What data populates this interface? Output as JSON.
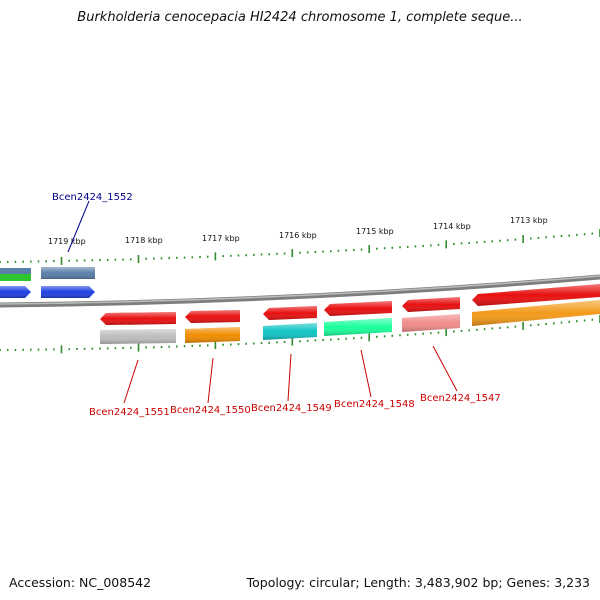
{
  "title": "Burkholderia cenocepacia HI2424 chromosome 1, complete seque...",
  "footer": {
    "accession": "Accession: NC_008542",
    "info": "Topology: circular; Length: 3,483,902 bp; Genes: 3,233"
  },
  "colors": {
    "tick": "#2e8b2e",
    "backbone": "#888888",
    "label_top": "#00008b",
    "label_bottom": "#cc0000"
  },
  "ticks": [
    "1719 kbp",
    "1718 kbp",
    "1717 kbp",
    "1716 kbp",
    "1715 kbp",
    "1714 kbp",
    "1713 kbp"
  ],
  "gene_labels": {
    "top": [
      "Bcen2424_1552"
    ],
    "bottom": [
      "Bcen2424_1551",
      "Bcen2424_1550",
      "Bcen2424_1549",
      "Bcen2424_1548",
      "Bcen2424_1547"
    ]
  },
  "features": [
    {
      "name": "Bcen2424_1552",
      "colors": [
        "#5a7fa8",
        "#1f3fe0"
      ]
    },
    {
      "name": "Bcen2424_1551",
      "colors": [
        "#e81010",
        "#bdbdbd"
      ]
    },
    {
      "name": "Bcen2424_1550",
      "colors": [
        "#e81010",
        "#f08c00"
      ]
    },
    {
      "name": "Bcen2424_1549",
      "colors": [
        "#e81010",
        "#10c4c4"
      ]
    },
    {
      "name": "Bcen2424_1548",
      "colors": [
        "#e81010",
        "#1aff9c"
      ]
    },
    {
      "name": "Bcen2424_1547",
      "colors": [
        "#e81010",
        "#f08b8b"
      ]
    },
    {
      "name": "",
      "colors": [
        "#e81010",
        "#f39a1a"
      ]
    }
  ]
}
